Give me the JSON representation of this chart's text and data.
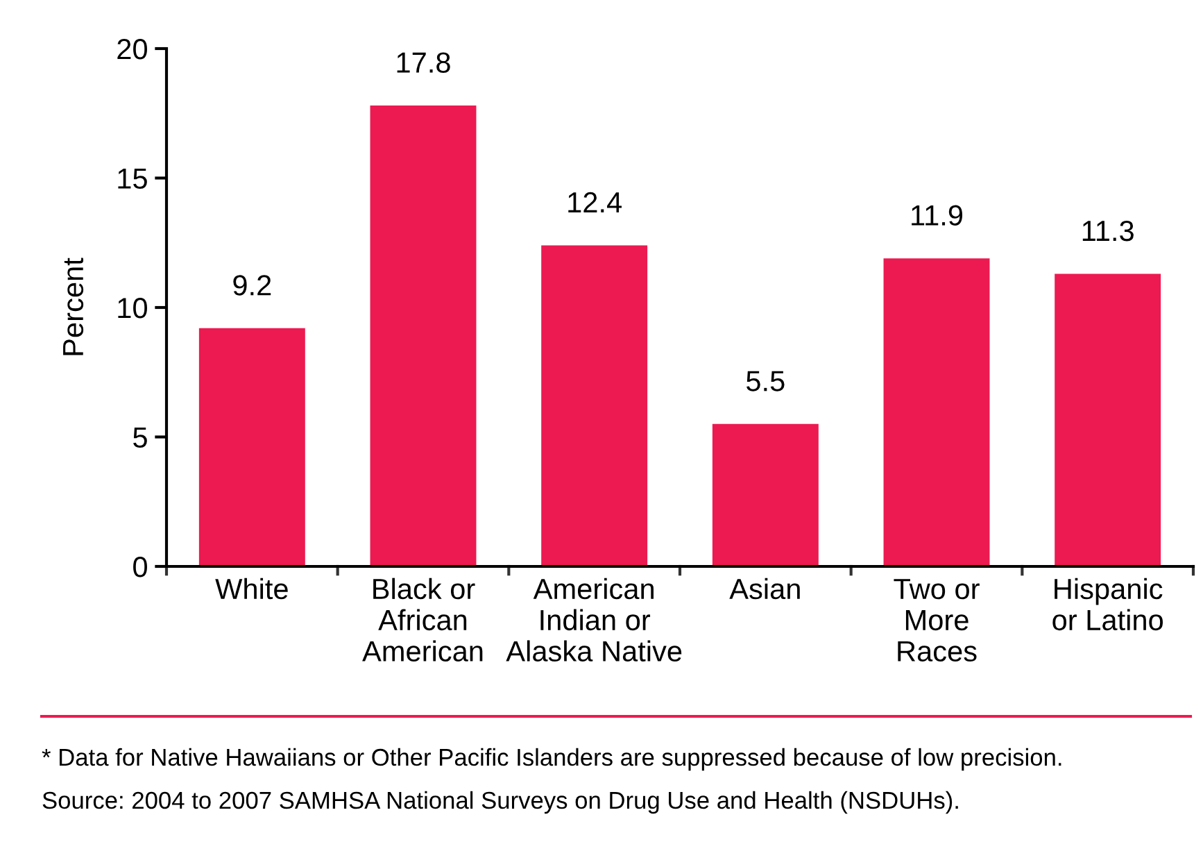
{
  "chart_data": {
    "type": "bar",
    "ylabel": "Percent",
    "categories": [
      "White",
      "Black or\nAfrican\nAmerican",
      "American\nIndian or\nAlaska Native",
      "Asian",
      "Two or\nMore\nRaces",
      "Hispanic\nor Latino"
    ],
    "values": [
      9.2,
      17.8,
      12.4,
      5.5,
      11.9,
      11.3
    ],
    "color": "#ec1a51",
    "ylim": [
      0,
      20
    ],
    "yticks": [
      0,
      5,
      10,
      15,
      20
    ],
    "data_labels": true,
    "annotations": [
      "* Data for Native Hawaiians or Other Pacific Islanders are suppressed because of low precision.",
      "Source: 2004 to 2007 SAMHSA National Surveys on Drug Use and Health (NSDUHs)."
    ]
  }
}
